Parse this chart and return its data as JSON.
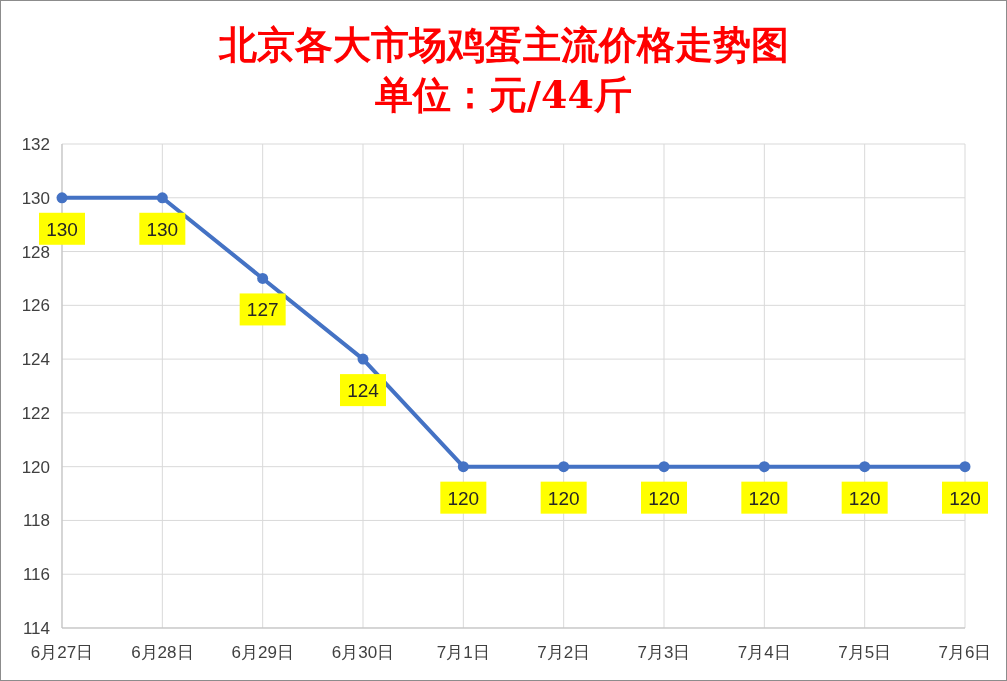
{
  "chart_data": {
    "type": "line",
    "title": "北京各大市场鸡蛋主流价格走势图",
    "subtitle": "单位：元/44斤",
    "categories": [
      "6月27日",
      "6月28日",
      "6月29日",
      "6月30日",
      "7月1日",
      "7月2日",
      "7月3日",
      "7月4日",
      "7月5日",
      "7月6日"
    ],
    "series": [
      {
        "color": "#4472c4",
        "values": [
          130,
          130,
          127,
          124,
          120,
          120,
          120,
          120,
          120,
          120
        ]
      }
    ],
    "ylim": [
      114,
      132
    ],
    "yticks": [
      114,
      116,
      118,
      120,
      122,
      124,
      126,
      128,
      130,
      132
    ],
    "grid": true,
    "marker": "circle",
    "line_style": "solid",
    "data_labels": true
  }
}
